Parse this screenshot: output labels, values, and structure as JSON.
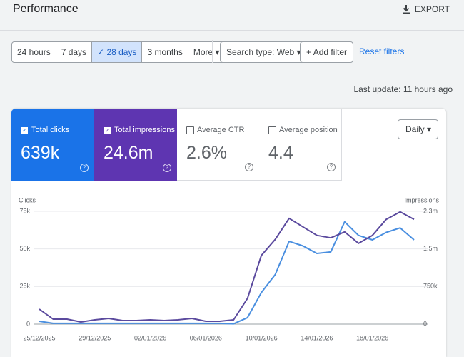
{
  "header": {
    "title": "Performance",
    "export": "EXPORT"
  },
  "filters": {
    "date_ranges": [
      "24 hours",
      "7 days",
      "28 days",
      "3 months",
      "More"
    ],
    "active": 2,
    "search_type": "Search type: Web",
    "add_filter": "Add filter",
    "reset": "Reset filters"
  },
  "last_update": "Last update: 11 hours ago",
  "metrics": [
    {
      "label": "Total clicks",
      "value": "639k"
    },
    {
      "label": "Total impressions",
      "value": "24.6m"
    },
    {
      "label": "Average CTR",
      "value": "2.6%"
    },
    {
      "label": "Average position",
      "value": "4.4"
    }
  ],
  "granularity": "Daily",
  "chart": {
    "type": "line",
    "y_label": "Clicks",
    "y2_label": "Impressions",
    "categories": [
      "25/12/2025",
      null,
      null,
      null,
      "29/12/2025",
      null,
      null,
      null,
      "02/01/2026",
      null,
      null,
      null,
      "06/01/2026",
      null,
      null,
      null,
      "10/01/2026",
      null,
      null,
      null,
      "14/01/2026",
      null,
      null,
      null,
      "18/01/2026",
      null,
      null,
      null
    ],
    "series": [
      {
        "name": "Clicks",
        "color": "#4a8fe0",
        "values": [
          1900,
          500,
          500,
          500,
          500,
          500,
          500,
          500,
          500,
          500,
          500,
          500,
          500,
          500,
          200,
          4300,
          21000,
          33000,
          55000,
          52000,
          47000,
          48000,
          68000,
          59000,
          56000,
          61000,
          64000,
          56000
        ]
      },
      {
        "name": "Impressions",
        "color": "#5b4a9e",
        "axis": "y2",
        "values": [
          299000,
          100000,
          100000,
          43000,
          85000,
          114000,
          71000,
          71000,
          85000,
          71000,
          85000,
          114000,
          57000,
          57000,
          85000,
          513000,
          1370000,
          1690000,
          2110000,
          1940000,
          1770000,
          1720000,
          1840000,
          1610000,
          1770000,
          2090000,
          2240000,
          2090000
        ]
      }
    ],
    "ylim": [
      0,
      75000
    ],
    "yticks": [
      0,
      {
        "value": 25000,
        "label": "25k"
      },
      {
        "value": 50000,
        "label": "50k"
      },
      {
        "value": 75000,
        "label": "75k"
      }
    ],
    "y2lim": [
      0,
      2250000
    ],
    "y2ticks": [
      0,
      {
        "value": 750000,
        "label": "750k"
      },
      {
        "value": 1500000,
        "label": "1.5m"
      },
      {
        "value": 2250000,
        "label": "2.3m"
      }
    ],
    "grid": true
  }
}
